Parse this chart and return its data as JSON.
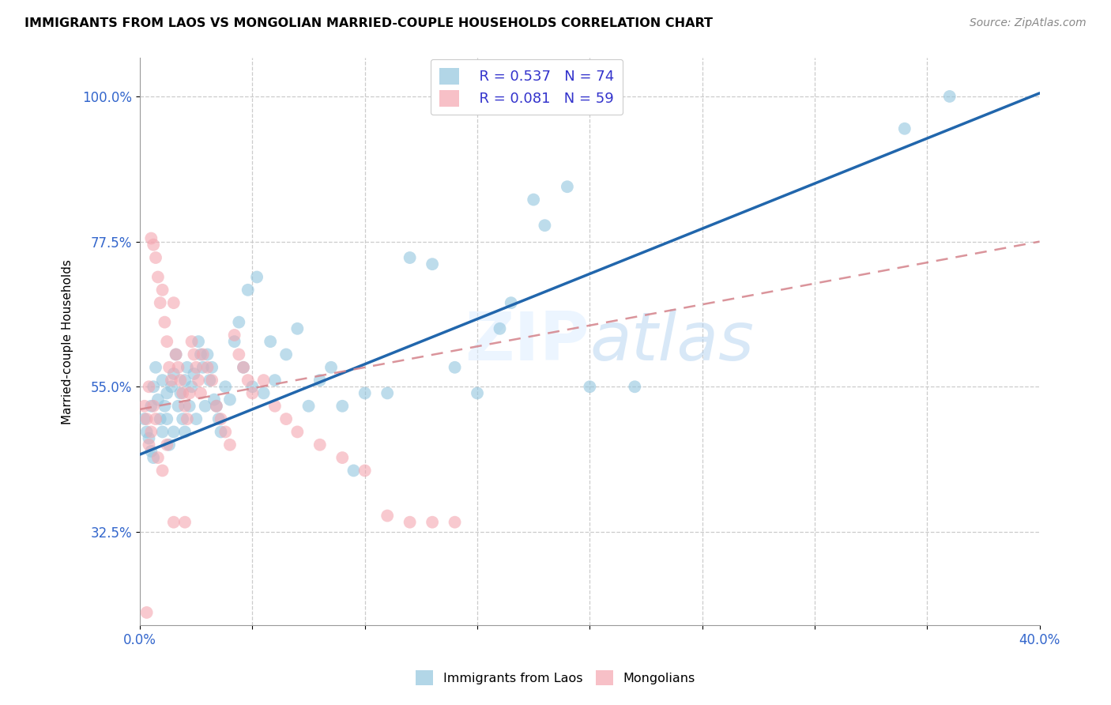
{
  "title": "IMMIGRANTS FROM LAOS VS MONGOLIAN MARRIED-COUPLE HOUSEHOLDS CORRELATION CHART",
  "source": "Source: ZipAtlas.com",
  "ylabel_label": "Married-couple Households",
  "legend_blue_r": "R = 0.537",
  "legend_blue_n": "N = 74",
  "legend_pink_r": "R = 0.081",
  "legend_pink_n": "N = 59",
  "blue_color": "#92c5de",
  "pink_color": "#f4a6b0",
  "trend_blue_color": "#2166ac",
  "trend_pink_color": "#d4828a",
  "xmin": 0.0,
  "xmax": 0.4,
  "ymin": 0.18,
  "ymax": 1.06,
  "ytick_vals": [
    1.0,
    0.775,
    0.55,
    0.325
  ],
  "ytick_labels": [
    "100.0%",
    "77.5%",
    "55.0%",
    "32.5%"
  ],
  "blue_trend_x0": 0.0,
  "blue_trend_y0": 0.445,
  "blue_trend_x1": 0.4,
  "blue_trend_y1": 1.005,
  "pink_trend_x0": 0.0,
  "pink_trend_y0": 0.515,
  "pink_trend_x1": 0.4,
  "pink_trend_y1": 0.775,
  "blue_scatter_x": [
    0.002,
    0.003,
    0.004,
    0.005,
    0.005,
    0.006,
    0.006,
    0.007,
    0.008,
    0.009,
    0.01,
    0.01,
    0.011,
    0.012,
    0.012,
    0.013,
    0.014,
    0.015,
    0.015,
    0.016,
    0.017,
    0.018,
    0.019,
    0.02,
    0.02,
    0.021,
    0.022,
    0.023,
    0.024,
    0.025,
    0.026,
    0.027,
    0.028,
    0.029,
    0.03,
    0.031,
    0.032,
    0.033,
    0.034,
    0.035,
    0.036,
    0.038,
    0.04,
    0.042,
    0.044,
    0.046,
    0.048,
    0.05,
    0.052,
    0.055,
    0.058,
    0.06,
    0.065,
    0.07,
    0.075,
    0.08,
    0.085,
    0.09,
    0.095,
    0.1,
    0.11,
    0.12,
    0.13,
    0.14,
    0.15,
    0.165,
    0.18,
    0.2,
    0.22,
    0.16,
    0.175,
    0.19,
    0.34,
    0.36
  ],
  "blue_scatter_y": [
    0.5,
    0.48,
    0.47,
    0.52,
    0.45,
    0.55,
    0.44,
    0.58,
    0.53,
    0.5,
    0.48,
    0.56,
    0.52,
    0.5,
    0.54,
    0.46,
    0.55,
    0.57,
    0.48,
    0.6,
    0.52,
    0.54,
    0.5,
    0.56,
    0.48,
    0.58,
    0.52,
    0.55,
    0.57,
    0.5,
    0.62,
    0.6,
    0.58,
    0.52,
    0.6,
    0.56,
    0.58,
    0.53,
    0.52,
    0.5,
    0.48,
    0.55,
    0.53,
    0.62,
    0.65,
    0.58,
    0.7,
    0.55,
    0.72,
    0.54,
    0.62,
    0.56,
    0.6,
    0.64,
    0.52,
    0.56,
    0.58,
    0.52,
    0.42,
    0.54,
    0.54,
    0.75,
    0.74,
    0.58,
    0.54,
    0.68,
    0.8,
    0.55,
    0.55,
    0.64,
    0.84,
    0.86,
    0.95,
    1.0
  ],
  "pink_scatter_x": [
    0.002,
    0.003,
    0.004,
    0.005,
    0.006,
    0.006,
    0.007,
    0.008,
    0.009,
    0.01,
    0.011,
    0.012,
    0.013,
    0.014,
    0.015,
    0.016,
    0.017,
    0.018,
    0.019,
    0.02,
    0.021,
    0.022,
    0.023,
    0.024,
    0.025,
    0.026,
    0.027,
    0.028,
    0.03,
    0.032,
    0.034,
    0.036,
    0.038,
    0.04,
    0.042,
    0.044,
    0.046,
    0.048,
    0.05,
    0.055,
    0.06,
    0.065,
    0.07,
    0.08,
    0.09,
    0.1,
    0.11,
    0.12,
    0.13,
    0.14,
    0.004,
    0.005,
    0.007,
    0.008,
    0.01,
    0.012,
    0.015,
    0.02,
    0.003
  ],
  "pink_scatter_y": [
    0.52,
    0.5,
    0.55,
    0.78,
    0.77,
    0.52,
    0.75,
    0.72,
    0.68,
    0.7,
    0.65,
    0.62,
    0.58,
    0.56,
    0.68,
    0.6,
    0.58,
    0.56,
    0.54,
    0.52,
    0.5,
    0.54,
    0.62,
    0.6,
    0.58,
    0.56,
    0.54,
    0.6,
    0.58,
    0.56,
    0.52,
    0.5,
    0.48,
    0.46,
    0.63,
    0.6,
    0.58,
    0.56,
    0.54,
    0.56,
    0.52,
    0.5,
    0.48,
    0.46,
    0.44,
    0.42,
    0.35,
    0.34,
    0.34,
    0.34,
    0.46,
    0.48,
    0.5,
    0.44,
    0.42,
    0.46,
    0.34,
    0.34,
    0.2
  ]
}
